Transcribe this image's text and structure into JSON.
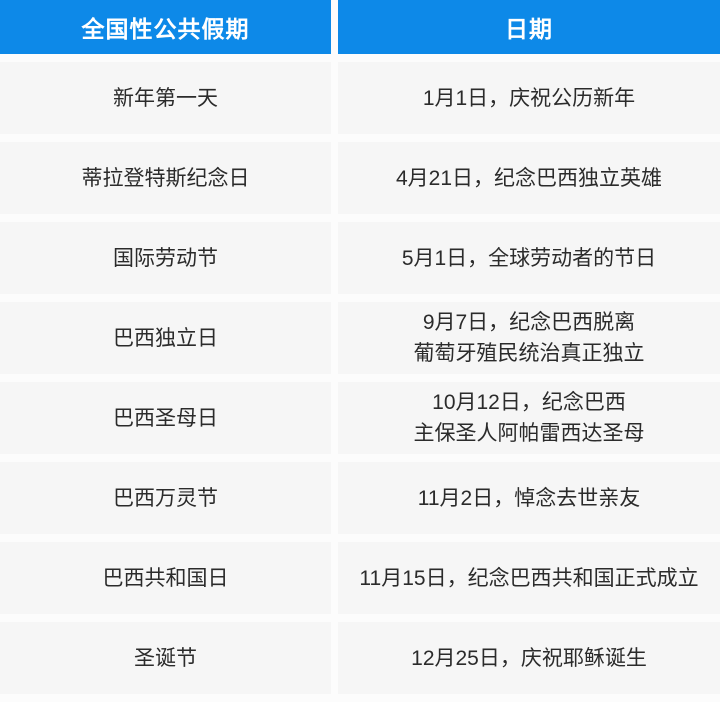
{
  "table": {
    "title_semantic": "巴西全国性公共假期表",
    "accent_color": "#0d89e8",
    "row_bg_color": "#f6f6f6",
    "header_text_color": "#ffffff",
    "body_text_color": "#2b2b2b",
    "headers": [
      {
        "label": "全国性公共假期"
      },
      {
        "label": "日期"
      }
    ],
    "rows": [
      {
        "holiday": "新年第一天",
        "date": "1月1日，庆祝公历新年"
      },
      {
        "holiday": "蒂拉登特斯纪念日",
        "date": "4月21日，纪念巴西独立英雄"
      },
      {
        "holiday": "国际劳动节",
        "date": "5月1日，全球劳动者的节日"
      },
      {
        "holiday": "巴西独立日",
        "date": "9月7日，纪念巴西脱离\n葡萄牙殖民统治真正独立"
      },
      {
        "holiday": "巴西圣母日",
        "date": "10月12日，纪念巴西\n主保圣人阿帕雷西达圣母"
      },
      {
        "holiday": "巴西万灵节",
        "date": "11月2日，悼念去世亲友"
      },
      {
        "holiday": "巴西共和国日",
        "date": "11月15日，纪念巴西共和国正式成立"
      },
      {
        "holiday": "圣诞节",
        "date": "12月25日，庆祝耶稣诞生"
      }
    ]
  }
}
